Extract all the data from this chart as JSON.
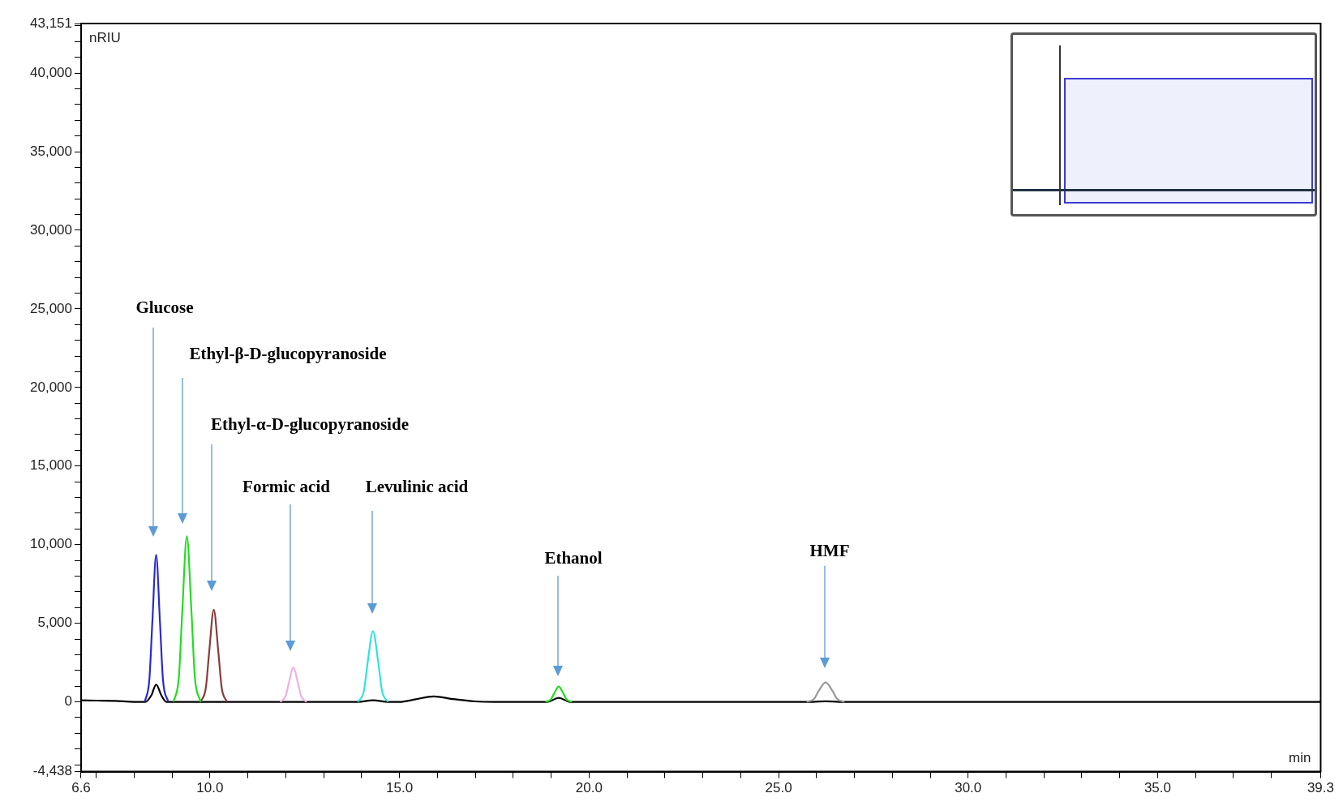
{
  "chart_data": {
    "type": "line",
    "xlabel": "min",
    "ylabel": "nRIU",
    "xlim": [
      6.6,
      39.3
    ],
    "ylim": [
      -4438,
      43151
    ],
    "xticks": [
      {
        "value": 6.6,
        "label": "6.6"
      },
      {
        "value": 7,
        "label": null
      },
      {
        "value": 8,
        "label": null
      },
      {
        "value": 9,
        "label": null
      },
      {
        "value": 10,
        "label": "10.0"
      },
      {
        "value": 11,
        "label": null
      },
      {
        "value": 12,
        "label": null
      },
      {
        "value": 13,
        "label": null
      },
      {
        "value": 14,
        "label": null
      },
      {
        "value": 15,
        "label": "15.0"
      },
      {
        "value": 16,
        "label": null
      },
      {
        "value": 17,
        "label": null
      },
      {
        "value": 18,
        "label": null
      },
      {
        "value": 19,
        "label": null
      },
      {
        "value": 20,
        "label": "20.0"
      },
      {
        "value": 21,
        "label": null
      },
      {
        "value": 22,
        "label": null
      },
      {
        "value": 23,
        "label": null
      },
      {
        "value": 24,
        "label": null
      },
      {
        "value": 25,
        "label": "25.0"
      },
      {
        "value": 26,
        "label": null
      },
      {
        "value": 27,
        "label": null
      },
      {
        "value": 28,
        "label": null
      },
      {
        "value": 29,
        "label": null
      },
      {
        "value": 30,
        "label": "30.0"
      },
      {
        "value": 31,
        "label": null
      },
      {
        "value": 32,
        "label": null
      },
      {
        "value": 33,
        "label": null
      },
      {
        "value": 34,
        "label": null
      },
      {
        "value": 35,
        "label": "35.0"
      },
      {
        "value": 36,
        "label": null
      },
      {
        "value": 37,
        "label": null
      },
      {
        "value": 38,
        "label": null
      },
      {
        "value": 39.3,
        "label": "39.3"
      }
    ],
    "yticks": [
      {
        "value": -4438,
        "label": "-4,438"
      },
      {
        "value": -4000,
        "label": null
      },
      {
        "value": -3000,
        "label": null
      },
      {
        "value": -2000,
        "label": null
      },
      {
        "value": -1000,
        "label": null
      },
      {
        "value": 0,
        "label": "0"
      },
      {
        "value": 1000,
        "label": null
      },
      {
        "value": 2000,
        "label": null
      },
      {
        "value": 3000,
        "label": null
      },
      {
        "value": 4000,
        "label": null
      },
      {
        "value": 5000,
        "label": "5,000"
      },
      {
        "value": 6000,
        "label": null
      },
      {
        "value": 7000,
        "label": null
      },
      {
        "value": 8000,
        "label": null
      },
      {
        "value": 9000,
        "label": null
      },
      {
        "value": 10000,
        "label": "10,000"
      },
      {
        "value": 11000,
        "label": null
      },
      {
        "value": 12000,
        "label": null
      },
      {
        "value": 13000,
        "label": null
      },
      {
        "value": 14000,
        "label": null
      },
      {
        "value": 15000,
        "label": "15,000"
      },
      {
        "value": 16000,
        "label": null
      },
      {
        "value": 17000,
        "label": null
      },
      {
        "value": 18000,
        "label": null
      },
      {
        "value": 19000,
        "label": null
      },
      {
        "value": 20000,
        "label": "20,000"
      },
      {
        "value": 21000,
        "label": null
      },
      {
        "value": 22000,
        "label": null
      },
      {
        "value": 23000,
        "label": null
      },
      {
        "value": 24000,
        "label": null
      },
      {
        "value": 25000,
        "label": "25,000"
      },
      {
        "value": 26000,
        "label": null
      },
      {
        "value": 27000,
        "label": null
      },
      {
        "value": 28000,
        "label": null
      },
      {
        "value": 29000,
        "label": null
      },
      {
        "value": 30000,
        "label": "30,000"
      },
      {
        "value": 31000,
        "label": null
      },
      {
        "value": 32000,
        "label": null
      },
      {
        "value": 33000,
        "label": null
      },
      {
        "value": 34000,
        "label": null
      },
      {
        "value": 35000,
        "label": "35,000"
      },
      {
        "value": 36000,
        "label": null
      },
      {
        "value": 37000,
        "label": null
      },
      {
        "value": 38000,
        "label": null
      },
      {
        "value": 39000,
        "label": null
      },
      {
        "value": 40000,
        "label": "40,000"
      },
      {
        "value": 41000,
        "label": null
      },
      {
        "value": 42000,
        "label": null
      },
      {
        "value": 43000,
        "label": null
      },
      {
        "value": 43151,
        "label": "43,151"
      }
    ],
    "grid": false,
    "legend": false,
    "marker": "none",
    "line_style": "solid",
    "series": [
      {
        "color": "#2a2ad0",
        "x": [
          8.28,
          8.4,
          8.48,
          8.58,
          8.68,
          8.76,
          8.9
        ],
        "values": [
          0,
          1400,
          5100,
          9350,
          5100,
          1400,
          0
        ]
      },
      {
        "color": "#22dd22",
        "x": [
          9.04,
          9.18,
          9.27,
          9.39,
          9.51,
          9.6,
          9.75,
          14.0,
          18.85,
          18.99,
          19.08,
          19.2,
          19.32,
          19.41,
          19.55
        ],
        "values": [
          0,
          1600,
          5800,
          10530,
          5800,
          1600,
          0,
          null,
          0,
          150,
          540,
          980,
          540,
          150,
          0
        ]
      },
      {
        "color": "#8b3a3a",
        "x": [
          9.75,
          9.89,
          9.98,
          10.1,
          10.22,
          10.31,
          10.45
        ],
        "values": [
          0,
          880,
          3200,
          5860,
          3200,
          880,
          0
        ]
      },
      {
        "color": "#f0b0e0",
        "x": [
          11.85,
          11.99,
          12.08,
          12.2,
          12.32,
          12.41,
          12.55
        ],
        "values": [
          0,
          330,
          1200,
          2200,
          1200,
          330,
          0
        ]
      },
      {
        "color": "#33e0e0",
        "x": [
          13.9,
          14.06,
          14.16,
          14.3,
          14.44,
          14.54,
          14.7
        ],
        "values": [
          0,
          680,
          2500,
          4500,
          2500,
          680,
          0
        ]
      },
      {
        "color": "#999999",
        "x": [
          25.74,
          25.94,
          26.06,
          26.24,
          26.42,
          26.54,
          26.74
        ],
        "values": [
          0,
          200,
          700,
          1230,
          700,
          200,
          0
        ]
      },
      {
        "color": "#000000",
        "x": [
          6.6,
          7.0,
          7.5,
          8.0,
          8.3,
          8.45,
          8.58,
          8.72,
          8.85,
          9.0,
          13.9,
          14.3,
          14.7,
          15.0,
          15.4,
          15.9,
          16.4,
          17.0,
          17.5,
          18.9,
          19.2,
          19.5,
          25.9,
          26.24,
          26.6,
          39.3
        ],
        "values": [
          100,
          80,
          60,
          0,
          0,
          400,
          1100,
          400,
          0,
          0,
          0,
          100,
          0,
          0,
          150,
          350,
          180,
          30,
          0,
          0,
          250,
          0,
          0,
          40,
          0,
          0
        ]
      }
    ],
    "annotations": [
      "Glucose",
      "Ethyl-β-D-glucopyranoside",
      "Ethyl-α-D-glucopyranoside",
      "Formic acid",
      "Levulinic acid",
      "Ethanol",
      "HMF"
    ]
  }
}
